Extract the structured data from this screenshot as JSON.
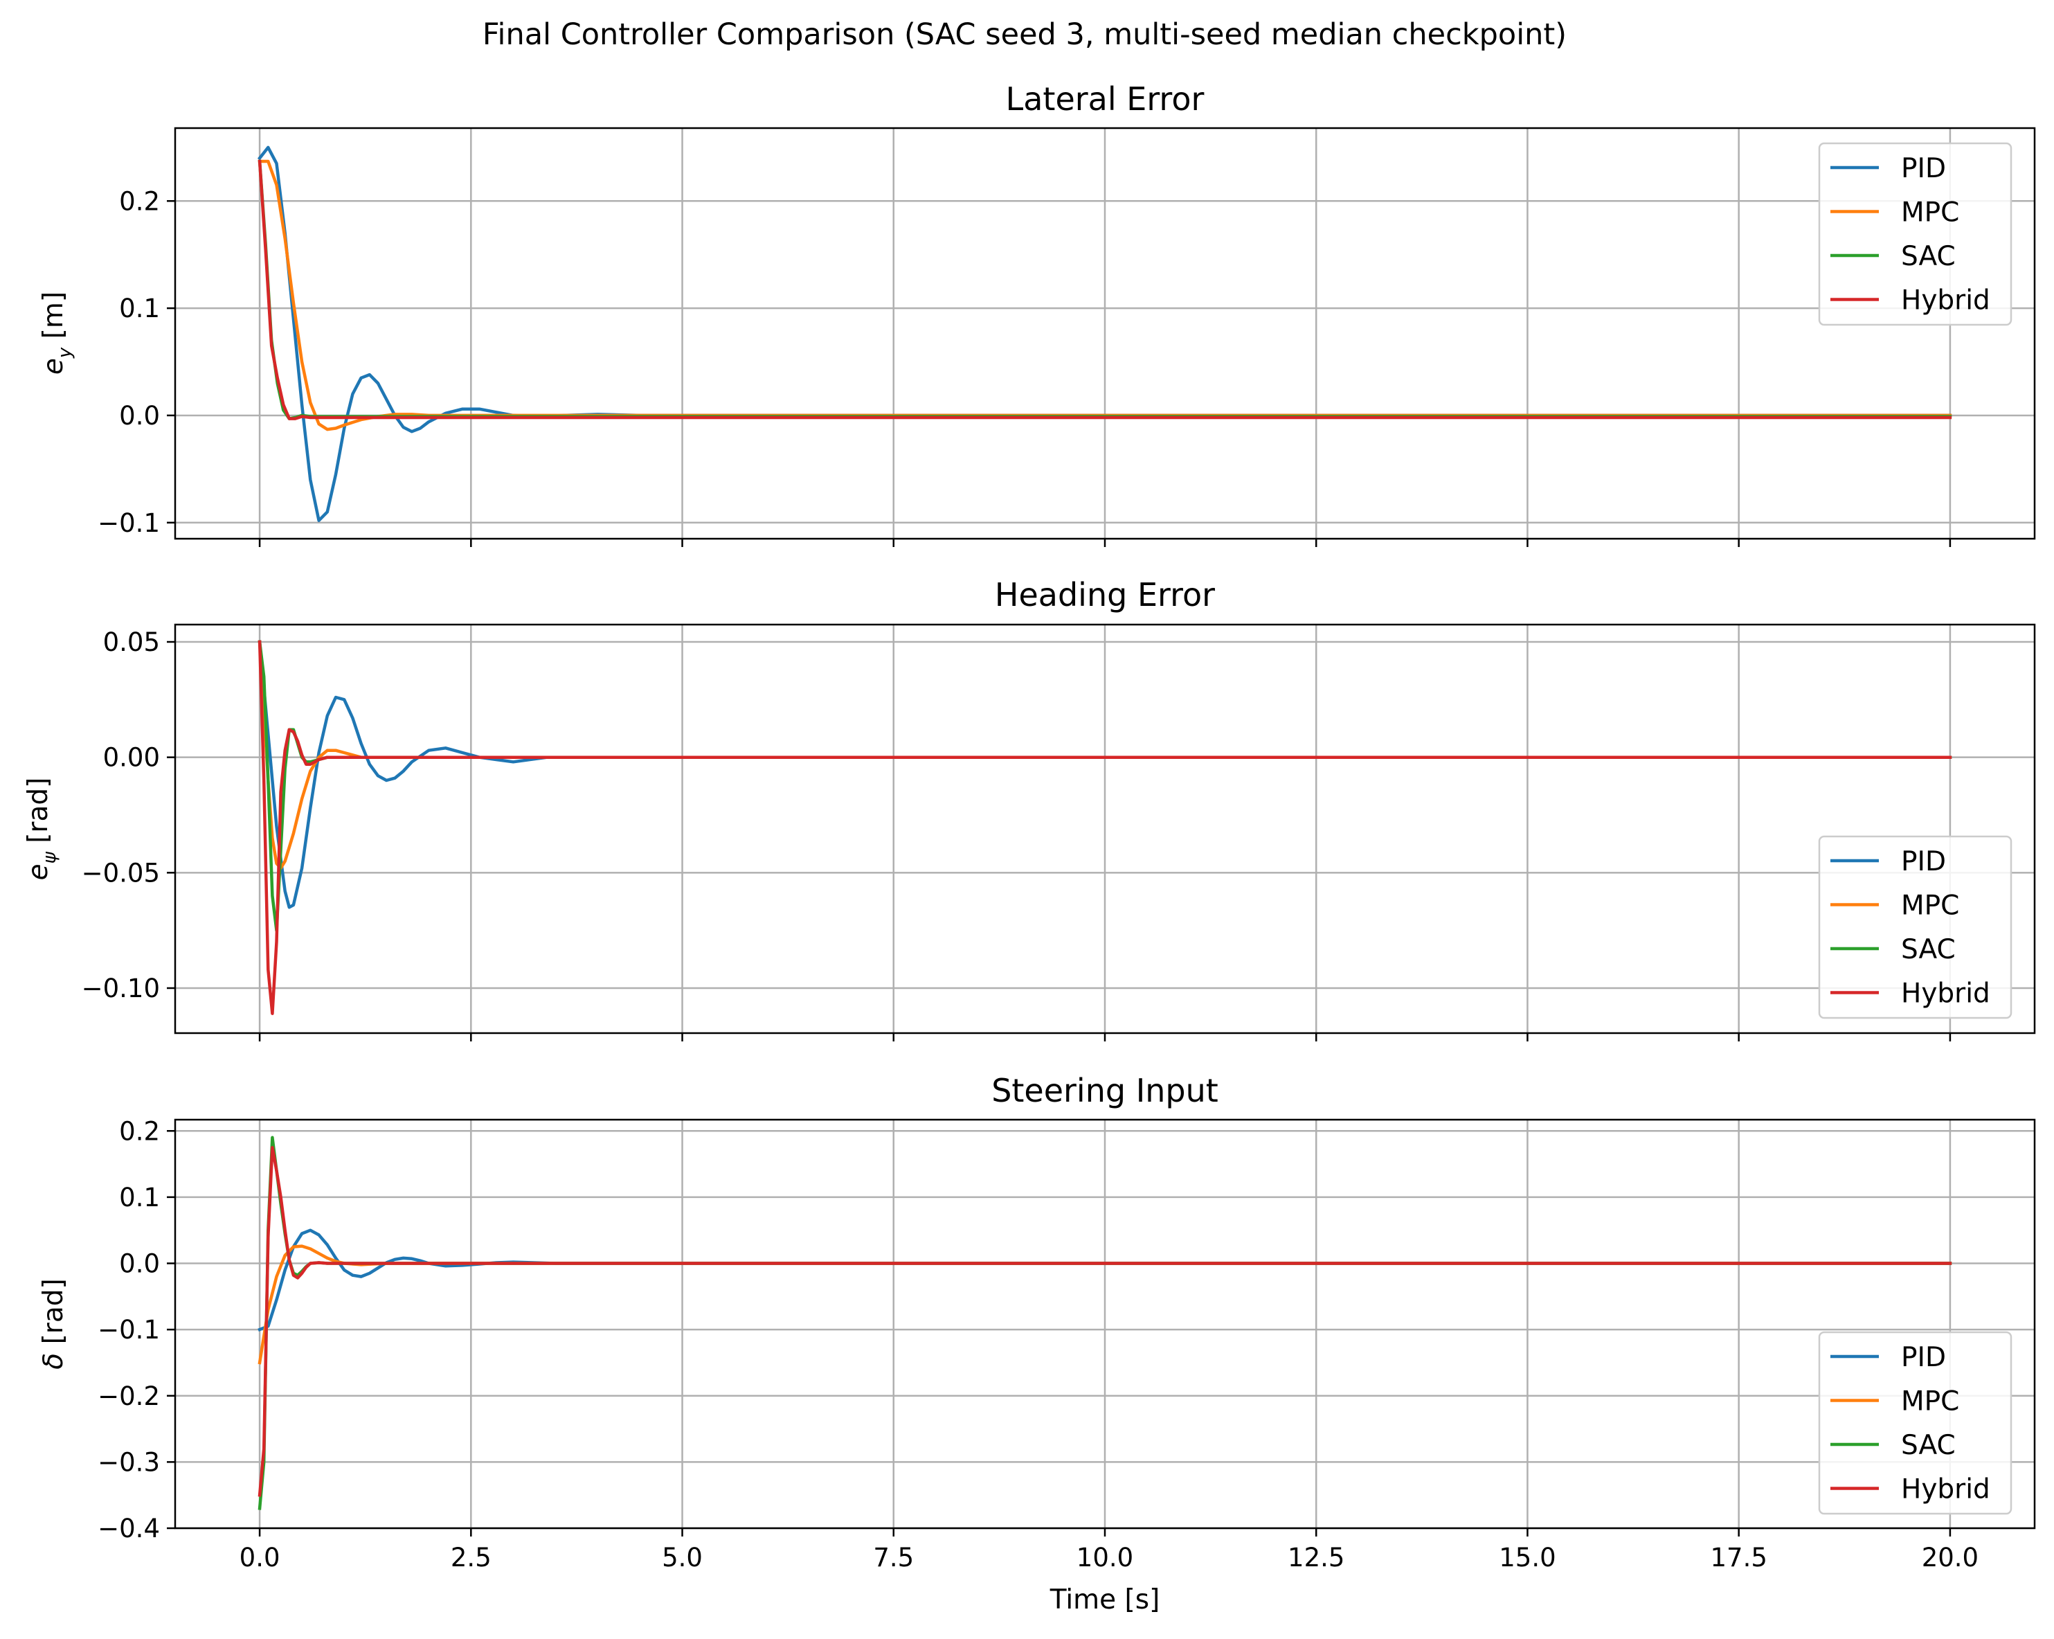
{
  "figure": {
    "title": "Final Controller Comparison (SAC seed 3, multi-seed median checkpoint)",
    "xlabel": "Time [s]",
    "xticks": [
      "0.0",
      "2.5",
      "5.0",
      "7.5",
      "10.0",
      "12.5",
      "15.0",
      "17.5",
      "20.0"
    ]
  },
  "panels": [
    {
      "title": "Lateral Error",
      "ylabel": "e_y [m]",
      "yticks": [
        "−0.1",
        "0.0",
        "0.1",
        "0.2"
      ],
      "legend_labels": [
        "PID",
        "MPC",
        "SAC",
        "Hybrid"
      ]
    },
    {
      "title": "Heading Error",
      "ylabel": "e_ψ [rad]",
      "yticks": [
        "−0.10",
        "−0.05",
        "0.00",
        "0.05"
      ],
      "legend_labels": [
        "PID",
        "MPC",
        "SAC",
        "Hybrid"
      ]
    },
    {
      "title": "Steering Input",
      "ylabel": "δ [rad]",
      "yticks": [
        "−0.4",
        "−0.3",
        "−0.2",
        "−0.1",
        "0.0",
        "0.1",
        "0.2"
      ],
      "legend_labels": [
        "PID",
        "MPC",
        "SAC",
        "Hybrid"
      ]
    }
  ],
  "colors": {
    "PID": "#1f77b4",
    "MPC": "#ff7f0e",
    "SAC": "#2ca02c",
    "Hybrid": "#d62728"
  },
  "chart_data": [
    {
      "type": "line",
      "title": "Lateral Error",
      "xlabel": "Time [s]",
      "ylabel": "e_y [m]",
      "xlim": [
        -1.0,
        21.0
      ],
      "ylim": [
        -0.115,
        0.268
      ],
      "grid": true,
      "legend_position": "top-right",
      "series": [
        {
          "name": "PID",
          "color": "#1f77b4",
          "x": [
            0,
            0.1,
            0.2,
            0.3,
            0.4,
            0.5,
            0.6,
            0.7,
            0.8,
            0.9,
            1.0,
            1.1,
            1.2,
            1.3,
            1.4,
            1.5,
            1.6,
            1.7,
            1.8,
            1.9,
            2.0,
            2.2,
            2.4,
            2.6,
            2.8,
            3.0,
            3.3,
            3.6,
            4.0,
            4.5,
            5.0,
            20.0
          ],
          "y": [
            0.24,
            0.25,
            0.235,
            0.17,
            0.09,
            0.01,
            -0.06,
            -0.098,
            -0.09,
            -0.055,
            -0.012,
            0.02,
            0.035,
            0.038,
            0.03,
            0.015,
            0.0,
            -0.011,
            -0.015,
            -0.012,
            -0.006,
            0.002,
            0.006,
            0.006,
            0.003,
            0.0,
            -0.001,
            0.0,
            0.001,
            0.0,
            0.0,
            0.0
          ]
        },
        {
          "name": "MPC",
          "color": "#ff7f0e",
          "x": [
            0,
            0.1,
            0.2,
            0.3,
            0.4,
            0.5,
            0.6,
            0.7,
            0.8,
            0.9,
            1.0,
            1.2,
            1.4,
            1.6,
            1.8,
            2.0,
            2.5,
            3.0,
            20.0
          ],
          "y": [
            0.237,
            0.237,
            0.215,
            0.165,
            0.105,
            0.05,
            0.012,
            -0.008,
            -0.013,
            -0.012,
            -0.009,
            -0.004,
            -0.001,
            0.001,
            0.001,
            0.0,
            0.0,
            0.0,
            0.0
          ]
        },
        {
          "name": "SAC",
          "color": "#2ca02c",
          "x": [
            0,
            0.07,
            0.14,
            0.21,
            0.28,
            0.35,
            0.42,
            0.5,
            0.6,
            0.8,
            1.0,
            20.0
          ],
          "y": [
            0.237,
            0.16,
            0.07,
            0.03,
            0.005,
            -0.003,
            -0.002,
            0.0,
            -0.001,
            -0.001,
            -0.001,
            -0.001
          ]
        },
        {
          "name": "Hybrid",
          "color": "#d62728",
          "x": [
            0,
            0.07,
            0.14,
            0.21,
            0.28,
            0.35,
            0.42,
            0.5,
            0.6,
            0.8,
            1.0,
            20.0
          ],
          "y": [
            0.237,
            0.155,
            0.065,
            0.035,
            0.01,
            -0.003,
            -0.003,
            -0.001,
            -0.002,
            -0.002,
            -0.002,
            -0.002
          ]
        }
      ]
    },
    {
      "type": "line",
      "title": "Heading Error",
      "xlabel": "Time [s]",
      "ylabel": "e_ψ [rad]",
      "xlim": [
        -1.0,
        21.0
      ],
      "ylim": [
        -0.1195,
        0.0575
      ],
      "grid": true,
      "legend_position": "bottom-right",
      "series": [
        {
          "name": "PID",
          "color": "#1f77b4",
          "x": [
            0,
            0.1,
            0.2,
            0.3,
            0.35,
            0.4,
            0.5,
            0.6,
            0.7,
            0.8,
            0.9,
            1.0,
            1.1,
            1.2,
            1.3,
            1.4,
            1.5,
            1.6,
            1.7,
            1.8,
            2.0,
            2.2,
            2.4,
            2.6,
            2.8,
            3.0,
            3.4,
            4.0,
            4.5,
            20.0
          ],
          "y": [
            0.05,
            0.01,
            -0.03,
            -0.058,
            -0.065,
            -0.064,
            -0.048,
            -0.022,
            0.002,
            0.018,
            0.026,
            0.025,
            0.017,
            0.006,
            -0.003,
            -0.008,
            -0.01,
            -0.009,
            -0.006,
            -0.002,
            0.003,
            0.004,
            0.002,
            0.0,
            -0.001,
            -0.002,
            0.0,
            0.0,
            0.0,
            0.0
          ]
        },
        {
          "name": "MPC",
          "color": "#ff7f0e",
          "x": [
            0,
            0.05,
            0.1,
            0.15,
            0.2,
            0.25,
            0.3,
            0.4,
            0.5,
            0.6,
            0.7,
            0.8,
            0.9,
            1.0,
            1.2,
            1.4,
            1.6,
            2.0,
            20.0
          ],
          "y": [
            0.05,
            0.02,
            -0.01,
            -0.035,
            -0.046,
            -0.048,
            -0.045,
            -0.033,
            -0.018,
            -0.006,
            0.0,
            0.003,
            0.003,
            0.002,
            0.0,
            0.0,
            0.0,
            0.0,
            0.0
          ]
        },
        {
          "name": "SAC",
          "color": "#2ca02c",
          "x": [
            0,
            0.05,
            0.1,
            0.15,
            0.2,
            0.25,
            0.3,
            0.35,
            0.4,
            0.45,
            0.5,
            0.55,
            0.6,
            0.7,
            0.8,
            1.0,
            20.0
          ],
          "y": [
            0.05,
            0.035,
            -0.01,
            -0.06,
            -0.075,
            -0.04,
            -0.005,
            0.012,
            0.012,
            0.006,
            0.0,
            -0.002,
            -0.002,
            -0.001,
            0.0,
            0.0,
            0.0
          ]
        },
        {
          "name": "Hybrid",
          "color": "#d62728",
          "x": [
            0,
            0.05,
            0.1,
            0.15,
            0.2,
            0.25,
            0.3,
            0.35,
            0.4,
            0.45,
            0.5,
            0.55,
            0.6,
            0.7,
            0.8,
            1.0,
            20.0
          ],
          "y": [
            0.05,
            -0.01,
            -0.092,
            -0.111,
            -0.08,
            -0.015,
            0.003,
            0.012,
            0.011,
            0.007,
            0.001,
            -0.003,
            -0.003,
            -0.001,
            0.0,
            0.0,
            0.0
          ]
        }
      ]
    },
    {
      "type": "line",
      "title": "Steering Input",
      "xlabel": "Time [s]",
      "ylabel": "δ [rad]",
      "xlim": [
        -1.0,
        21.0
      ],
      "ylim": [
        -0.4,
        0.217
      ],
      "grid": true,
      "legend_position": "bottom-right",
      "series": [
        {
          "name": "PID",
          "color": "#1f77b4",
          "x": [
            0,
            0.1,
            0.2,
            0.3,
            0.4,
            0.5,
            0.6,
            0.7,
            0.8,
            0.9,
            1.0,
            1.1,
            1.2,
            1.3,
            1.4,
            1.5,
            1.6,
            1.7,
            1.8,
            1.9,
            2.0,
            2.2,
            2.4,
            2.6,
            2.8,
            3.0,
            3.5,
            4.0,
            20.0
          ],
          "y": [
            -0.1,
            -0.095,
            -0.055,
            -0.01,
            0.025,
            0.045,
            0.05,
            0.043,
            0.028,
            0.008,
            -0.01,
            -0.018,
            -0.02,
            -0.015,
            -0.007,
            0.001,
            0.006,
            0.008,
            0.007,
            0.004,
            0.0,
            -0.004,
            -0.003,
            -0.001,
            0.001,
            0.002,
            0.0,
            0.0,
            0.0
          ]
        },
        {
          "name": "MPC",
          "color": "#ff7f0e",
          "x": [
            0,
            0.05,
            0.1,
            0.2,
            0.3,
            0.4,
            0.5,
            0.6,
            0.7,
            0.8,
            0.9,
            1.0,
            1.2,
            1.5,
            2.0,
            20.0
          ],
          "y": [
            -0.15,
            -0.11,
            -0.07,
            -0.02,
            0.012,
            0.025,
            0.026,
            0.022,
            0.015,
            0.008,
            0.003,
            0.0,
            -0.002,
            0.0,
            0.0,
            0.0
          ]
        },
        {
          "name": "SAC",
          "color": "#2ca02c",
          "x": [
            0,
            0.05,
            0.1,
            0.15,
            0.2,
            0.25,
            0.3,
            0.35,
            0.4,
            0.45,
            0.5,
            0.55,
            0.6,
            0.7,
            0.8,
            1.0,
            20.0
          ],
          "y": [
            -0.37,
            -0.3,
            0.05,
            0.19,
            0.14,
            0.09,
            0.045,
            0.005,
            -0.015,
            -0.018,
            -0.012,
            -0.005,
            0.0,
            0.001,
            0.0,
            0.0,
            0.0
          ]
        },
        {
          "name": "Hybrid",
          "color": "#d62728",
          "x": [
            0,
            0.05,
            0.1,
            0.15,
            0.2,
            0.25,
            0.3,
            0.35,
            0.4,
            0.45,
            0.5,
            0.55,
            0.6,
            0.7,
            0.8,
            1.0,
            20.0
          ],
          "y": [
            -0.35,
            -0.28,
            0.04,
            0.175,
            0.14,
            0.1,
            0.05,
            0.005,
            -0.018,
            -0.022,
            -0.015,
            -0.006,
            0.0,
            0.001,
            0.0,
            0.0,
            0.0
          ]
        }
      ]
    }
  ]
}
